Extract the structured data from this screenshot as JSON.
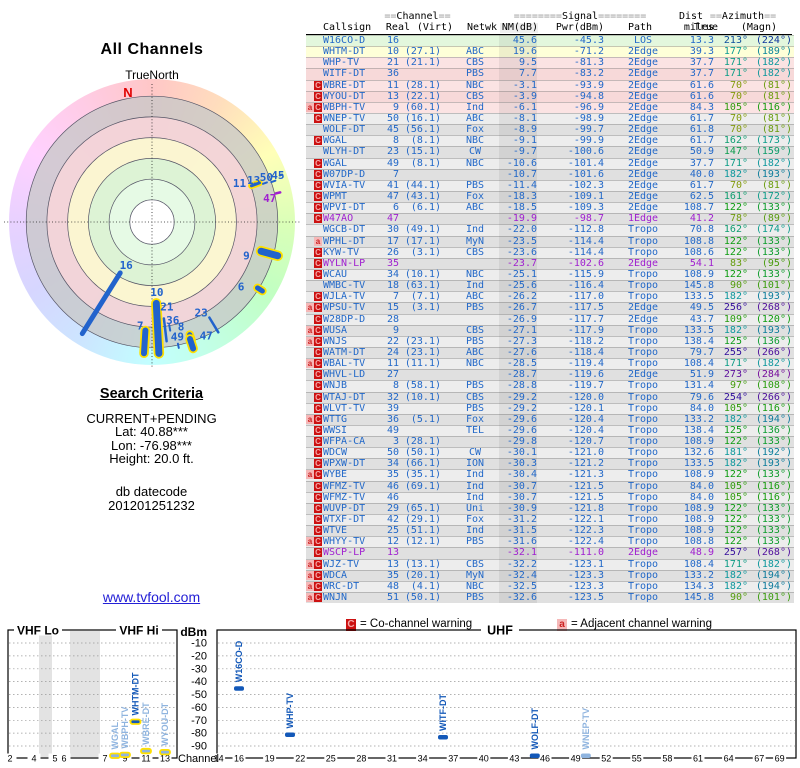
{
  "colors": {
    "table_blue": "#2268C8",
    "table_magenta": "#A020D0",
    "bar_dark_blue": "#1358B8",
    "bar_light_blue": "#8FB4DF",
    "marker_blue": "#2263CC",
    "marker_outline_yellow": "#FFE000",
    "warning_c_bg": "#CC1111",
    "warning_a_bg": "#F5B8B8",
    "link_blue": "#2420D6",
    "north_red": "#E00000"
  },
  "polar": {
    "title": "All Channels",
    "north_label": "TrueNorth",
    "n_letter": "N"
  },
  "search": {
    "heading": "Search Criteria",
    "lines": [
      "CURRENT+PENDING",
      "Lat: 40.88***",
      "Lon: -76.98***",
      "Height: 20.0 ft."
    ],
    "datecode_label": "db datecode",
    "datecode": "201201251232",
    "link": "www.tvfool.com"
  },
  "legend": {
    "c_letter": "C",
    "co_text": "= Co-channel warning",
    "a_letter": "a",
    "adj_text": "= Adjacent channel warning"
  },
  "table": {
    "header": {
      "channel_marks": "==",
      "channel": "Channel",
      "signal_marks": "========",
      "signal": "Signal",
      "dist": "Dist",
      "azimuth_marks": "==",
      "azimuth": "Azimuth",
      "callsign": "Callsign",
      "real": "Real",
      "virt": "(Virt)",
      "netwk": "Netwk",
      "nm": "NM(dB)",
      "pwr": "Pwr(dBm)",
      "path": "Path",
      "miles": "miles",
      "true": "True",
      "magn": "(Magn)"
    },
    "magenta_rows": [
      16,
      20,
      46
    ]
  },
  "spectrum": {
    "dbm_label": "dBm",
    "channel_label": "Channel",
    "vhf_lo": "VHF Lo",
    "vhf_hi": "VHF Hi",
    "uhf": "UHF",
    "y_ticks": [
      -10,
      -20,
      -30,
      -40,
      -50,
      -60,
      -70,
      -80,
      -90
    ],
    "vhf_ticks": [
      2,
      4,
      5,
      6,
      7,
      9,
      11,
      13
    ],
    "uhf_ticks": [
      14,
      16,
      19,
      22,
      25,
      28,
      31,
      34,
      37,
      40,
      43,
      46,
      49,
      52,
      55,
      58,
      61,
      64,
      67,
      69
    ]
  },
  "chart_data": [
    {
      "type": "table",
      "title": "All Channels signal list",
      "columns": [
        "Callsign",
        "Real",
        "(Virt)",
        "Netwk",
        "NM(dB)",
        "Pwr(dBm)",
        "Path",
        "miles",
        "True",
        "(Magn)",
        "Warnings"
      ],
      "rows": [
        [
          "W16CO-D",
          16,
          "",
          "",
          "45.6",
          "-45.3",
          "LOS",
          "13.3",
          213,
          224,
          ""
        ],
        [
          "WHTM-DT",
          10,
          "(27.1)",
          "ABC",
          "19.6",
          "-71.2",
          "2Edge",
          "39.3",
          177,
          189,
          ""
        ],
        [
          "WHP-TV",
          21,
          "(21.1)",
          "CBS",
          "9.5",
          "-81.3",
          "2Edge",
          "37.7",
          171,
          182,
          ""
        ],
        [
          "WITF-DT",
          36,
          "",
          "PBS",
          "7.7",
          "-83.2",
          "2Edge",
          "37.7",
          171,
          182,
          ""
        ],
        [
          "WBRE-DT",
          11,
          "(28.1)",
          "NBC",
          "-3.1",
          "-93.9",
          "2Edge",
          "61.6",
          70,
          81,
          "C"
        ],
        [
          "WYOU-DT",
          13,
          "(22.1)",
          "CBS",
          "-3.9",
          "-94.8",
          "2Edge",
          "61.6",
          70,
          81,
          "C"
        ],
        [
          "WBPH-TV",
          9,
          "(60.1)",
          "Ind",
          "-6.1",
          "-96.9",
          "2Edge",
          "84.3",
          105,
          116,
          "aC"
        ],
        [
          "WNEP-TV",
          50,
          "(16.1)",
          "ABC",
          "-8.1",
          "-98.9",
          "2Edge",
          "61.7",
          70,
          81,
          "C"
        ],
        [
          "WOLF-DT",
          45,
          "(56.1)",
          "Fox",
          "-8.9",
          "-99.7",
          "2Edge",
          "61.8",
          70,
          81,
          ""
        ],
        [
          "WGAL",
          8,
          "(8.1)",
          "NBC",
          "-9.1",
          "-99.9",
          "2Edge",
          "61.7",
          162,
          173,
          "C"
        ],
        [
          "WLYH-DT",
          23,
          "(15.1)",
          "CW",
          "-9.7",
          "-100.6",
          "2Edge",
          "50.9",
          147,
          159,
          ""
        ],
        [
          "WGAL",
          49,
          "(8.1)",
          "NBC",
          "-10.6",
          "-101.4",
          "2Edge",
          "37.7",
          171,
          182,
          "C"
        ],
        [
          "W07DP-D",
          7,
          "",
          "",
          "-10.7",
          "-101.6",
          "2Edge",
          "40.0",
          182,
          193,
          "C"
        ],
        [
          "WVIA-TV",
          41,
          "(44.1)",
          "PBS",
          "-11.4",
          "-102.3",
          "2Edge",
          "61.7",
          70,
          81,
          "C"
        ],
        [
          "WPMT",
          47,
          "(43.1)",
          "Fox",
          "-18.3",
          "-109.1",
          "2Edge",
          "62.5",
          161,
          172,
          "C"
        ],
        [
          "WPVI-DT",
          6,
          "(6.1)",
          "ABC",
          "-18.5",
          "-109.3",
          "2Edge",
          "108.7",
          122,
          133,
          "C"
        ],
        [
          "W47AO",
          47,
          "",
          "",
          "-19.9",
          "-98.7",
          "1Edge",
          "41.2",
          78,
          89,
          "C"
        ],
        [
          "WGCB-DT",
          30,
          "(49.1)",
          "Ind",
          "-22.0",
          "-112.8",
          "Tropo",
          "70.8",
          162,
          174,
          ""
        ],
        [
          "WPHL-DT",
          17,
          "(17.1)",
          "MyN",
          "-23.5",
          "-114.4",
          "Tropo",
          "108.8",
          122,
          133,
          "a"
        ],
        [
          "KYW-TV",
          26,
          "(3.1)",
          "CBS",
          "-23.6",
          "-114.4",
          "Tropo",
          "108.6",
          122,
          133,
          "C"
        ],
        [
          "WYLN-LP",
          35,
          "",
          "",
          "-23.7",
          "-102.6",
          "2Edge",
          "54.1",
          83,
          95,
          "C"
        ],
        [
          "WCAU",
          34,
          "(10.1)",
          "NBC",
          "-25.1",
          "-115.9",
          "Tropo",
          "108.9",
          122,
          133,
          "C"
        ],
        [
          "WMBC-TV",
          18,
          "(63.1)",
          "Ind",
          "-25.6",
          "-116.4",
          "Tropo",
          "145.8",
          90,
          101,
          ""
        ],
        [
          "WJLA-TV",
          7,
          "(7.1)",
          "ABC",
          "-26.2",
          "-117.0",
          "Tropo",
          "133.5",
          182,
          193,
          "C"
        ],
        [
          "WPSU-TV",
          15,
          "(3.1)",
          "PBS",
          "-26.7",
          "-117.5",
          "2Edge",
          "49.5",
          256,
          268,
          "aC"
        ],
        [
          "W28DP-D",
          28,
          "",
          "",
          "-26.9",
          "-117.7",
          "2Edge",
          "43.7",
          109,
          120,
          "C"
        ],
        [
          "WUSA",
          9,
          "",
          "CBS",
          "-27.1",
          "-117.9",
          "Tropo",
          "133.5",
          182,
          193,
          "aC"
        ],
        [
          "WNJS",
          22,
          "(23.1)",
          "PBS",
          "-27.3",
          "-118.2",
          "Tropo",
          "138.4",
          125,
          136,
          "aC"
        ],
        [
          "WATM-DT",
          24,
          "(23.1)",
          "ABC",
          "-27.6",
          "-118.4",
          "Tropo",
          "79.7",
          255,
          266,
          "C"
        ],
        [
          "WBAL-TV",
          11,
          "(11.1)",
          "NBC",
          "-28.5",
          "-119.4",
          "Tropo",
          "108.4",
          171,
          182,
          "aC"
        ],
        [
          "WHVL-LD",
          27,
          "",
          "",
          "-28.7",
          "-119.6",
          "2Edge",
          "51.9",
          273,
          284,
          "C"
        ],
        [
          "WNJB",
          8,
          "(58.1)",
          "PBS",
          "-28.8",
          "-119.7",
          "Tropo",
          "131.4",
          97,
          108,
          "C"
        ],
        [
          "WTAJ-DT",
          32,
          "(10.1)",
          "CBS",
          "-29.2",
          "-120.0",
          "Tropo",
          "79.6",
          254,
          266,
          "C"
        ],
        [
          "WLVT-TV",
          39,
          "",
          "PBS",
          "-29.2",
          "-120.1",
          "Tropo",
          "84.0",
          105,
          116,
          "C"
        ],
        [
          "WTTG",
          36,
          "(5.1)",
          "Fox",
          "-29.6",
          "-120.4",
          "Tropo",
          "133.2",
          182,
          194,
          "aC"
        ],
        [
          "WWSI",
          49,
          "",
          "TEL",
          "-29.6",
          "-120.4",
          "Tropo",
          "138.4",
          125,
          136,
          "C"
        ],
        [
          "WFPA-CA",
          3,
          "(28.1)",
          "",
          "-29.8",
          "-120.7",
          "Tropo",
          "108.9",
          122,
          133,
          "C"
        ],
        [
          "WDCW",
          50,
          "(50.1)",
          "CW",
          "-30.1",
          "-121.0",
          "Tropo",
          "132.6",
          181,
          192,
          "C"
        ],
        [
          "WPXW-DT",
          34,
          "(66.1)",
          "ION",
          "-30.3",
          "-121.2",
          "Tropo",
          "133.5",
          182,
          193,
          "C"
        ],
        [
          "WYBE",
          35,
          "(35.1)",
          "Ind",
          "-30.4",
          "-121.3",
          "Tropo",
          "108.9",
          122,
          133,
          "aC"
        ],
        [
          "WFMZ-TV",
          46,
          "(69.1)",
          "Ind",
          "-30.7",
          "-121.5",
          "Tropo",
          "84.0",
          105,
          116,
          "C"
        ],
        [
          "WFMZ-TV",
          46,
          "",
          "Ind",
          "-30.7",
          "-121.5",
          "Tropo",
          "84.0",
          105,
          116,
          "C"
        ],
        [
          "WUVP-DT",
          29,
          "(65.1)",
          "Uni",
          "-30.9",
          "-121.8",
          "Tropo",
          "108.9",
          122,
          133,
          "C"
        ],
        [
          "WTXF-DT",
          42,
          "(29.1)",
          "Fox",
          "-31.2",
          "-122.1",
          "Tropo",
          "108.9",
          122,
          133,
          "C"
        ],
        [
          "WTVE",
          25,
          "(51.1)",
          "Ind",
          "-31.5",
          "-122.3",
          "Tropo",
          "108.9",
          122,
          133,
          "C"
        ],
        [
          "WHYY-TV",
          12,
          "(12.1)",
          "PBS",
          "-31.6",
          "-122.4",
          "Tropo",
          "108.8",
          122,
          133,
          "aC"
        ],
        [
          "WSCP-LP",
          13,
          "",
          "",
          "-32.1",
          "-111.0",
          "2Edge",
          "48.9",
          257,
          268,
          "C"
        ],
        [
          "WJZ-TV",
          13,
          "(13.1)",
          "CBS",
          "-32.2",
          "-123.1",
          "Tropo",
          "108.4",
          171,
          182,
          "aC"
        ],
        [
          "WDCA",
          35,
          "(20.1)",
          "MyN",
          "-32.4",
          "-123.3",
          "Tropo",
          "133.2",
          182,
          194,
          "aC"
        ],
        [
          "WRC-DT",
          48,
          "(4.1)",
          "NBC",
          "-32.5",
          "-123.3",
          "Tropo",
          "134.3",
          182,
          194,
          "aC"
        ],
        [
          "WNJN",
          51,
          "(50.1)",
          "PBS",
          "-32.6",
          "-123.5",
          "Tropo",
          "145.8",
          90,
          101,
          "aC"
        ]
      ]
    },
    {
      "type": "scatter",
      "title": "Signal power by RF channel",
      "xlabel": "Channel",
      "ylabel": "dBm",
      "ylim": [
        -100,
        -10
      ],
      "series": [
        {
          "name": "WGAL",
          "channel": 8,
          "band": "VHF",
          "pwr_dbm": -99.9,
          "muted": true,
          "outline": true
        },
        {
          "name": "WBPH-TV",
          "channel": 9,
          "band": "VHF",
          "pwr_dbm": -96.9,
          "muted": true,
          "outline": true
        },
        {
          "name": "WHTM-DT",
          "channel": 10,
          "band": "VHF",
          "pwr_dbm": -71.2,
          "muted": false,
          "outline": true
        },
        {
          "name": "WBRE-DT",
          "channel": 11,
          "band": "VHF",
          "pwr_dbm": -93.9,
          "muted": true,
          "outline": true
        },
        {
          "name": "WYOU-DT",
          "channel": 13,
          "band": "VHF",
          "pwr_dbm": -94.8,
          "muted": true,
          "outline": true
        },
        {
          "name": "W16CO-D",
          "channel": 16,
          "band": "UHF",
          "pwr_dbm": -45.3,
          "muted": false,
          "outline": false
        },
        {
          "name": "WHP-TV",
          "channel": 21,
          "band": "UHF",
          "pwr_dbm": -81.3,
          "muted": false,
          "outline": false
        },
        {
          "name": "WITF-DT",
          "channel": 36,
          "band": "UHF",
          "pwr_dbm": -83.2,
          "muted": false,
          "outline": false
        },
        {
          "name": "WOLF-DT",
          "channel": 45,
          "band": "UHF",
          "pwr_dbm": -99.7,
          "muted": false,
          "outline": false
        },
        {
          "name": "WNEP-TV",
          "channel": 50,
          "band": "UHF",
          "pwr_dbm": -98.9,
          "muted": true,
          "outline": false
        }
      ]
    },
    {
      "type": "polar",
      "title": "All Channels",
      "markers": [
        {
          "label": "16",
          "azimuth_deg": 212,
          "r0": 0.42,
          "r1": 0.92,
          "w": 5,
          "outline": false,
          "label_az": 211,
          "label_r": 0.35
        },
        {
          "label": "10",
          "azimuth_deg": 177,
          "r0": 0.57,
          "r1": 0.92,
          "w": 7,
          "outline": true,
          "label_az": 176,
          "label_r": 0.49
        },
        {
          "label": "21",
          "azimuth_deg": 173,
          "r0": 0.68,
          "r1": 0.84,
          "w": 2.5,
          "outline": false,
          "label_az": 170,
          "label_r": 0.6
        },
        {
          "label": "36",
          "azimuth_deg": 170.5,
          "r0": 0.73,
          "r1": 0.77,
          "w": 2,
          "outline": false,
          "label_az": 168,
          "label_r": 0.7
        },
        {
          "label": "49",
          "azimuth_deg": 168,
          "r0": 0.87,
          "r1": 0.9,
          "w": 2,
          "outline": false,
          "label_az": 167.5,
          "label_r": 0.82
        },
        {
          "label": "7",
          "azimuth_deg": 183.5,
          "r0": 0.76,
          "r1": 0.92,
          "w": 6,
          "outline": true,
          "label_az": 186.5,
          "label_r": 0.73
        },
        {
          "label": "8",
          "azimuth_deg": 161.5,
          "r0": 0.83,
          "r1": 0.87,
          "w": 5,
          "outline": true,
          "label_az": 164.5,
          "label_r": 0.76
        },
        {
          "label": "47",
          "azimuth_deg": 162,
          "r0": 0.86,
          "r1": 0.93,
          "w": 6,
          "outline": true,
          "label_az": 154.5,
          "label_r": 0.88
        },
        {
          "label": "23",
          "azimuth_deg": 149,
          "r0": 0.78,
          "r1": 0.9,
          "w": 2.5,
          "outline": false,
          "label_az": 151.5,
          "label_r": 0.72
        },
        {
          "label": "9",
          "azimuth_deg": 105,
          "r0": 0.79,
          "r1": 0.91,
          "w": 7,
          "outline": true,
          "label_az": 109.5,
          "label_r": 0.7
        },
        {
          "label": "6",
          "azimuth_deg": 122,
          "r0": 0.87,
          "r1": 0.91,
          "w": 5,
          "outline": true,
          "label_az": 126,
          "label_r": 0.77
        },
        {
          "label": "11",
          "azimuth_deg": 70,
          "r0": 0.74,
          "r1": 0.8,
          "w": 3,
          "outline": true,
          "label_az": 66,
          "label_r": 0.67
        },
        {
          "label": "13",
          "azimuth_deg": 71,
          "r0": 0.82,
          "r1": 0.85,
          "w": 2,
          "outline": false,
          "label_az": 67.5,
          "label_r": 0.77
        },
        {
          "label": "50",
          "azimuth_deg": 71.5,
          "r0": 0.88,
          "r1": 0.91,
          "w": 2,
          "outline": false,
          "label_az": 68.5,
          "label_r": 0.86
        },
        {
          "label": "45",
          "azimuth_deg": 70,
          "r0": 0.95,
          "r1": 0.97,
          "w": 2,
          "outline": false,
          "label_az": 69.5,
          "label_r": 0.94
        },
        {
          "label": "47",
          "azimuth_deg": 77,
          "r0": 0.89,
          "r1": 0.92,
          "w": 2.5,
          "outline": false,
          "label_az": 78.5,
          "label_r": 0.84,
          "magenta": true
        }
      ]
    }
  ]
}
